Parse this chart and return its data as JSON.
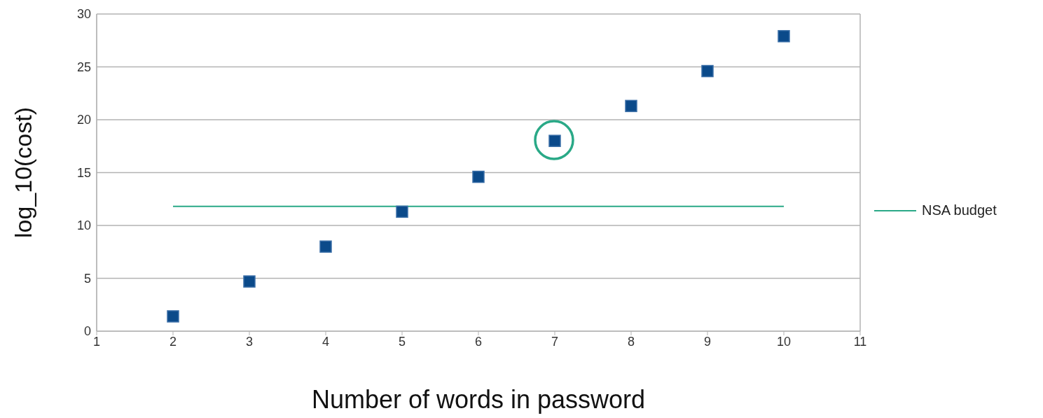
{
  "chart_data": {
    "type": "scatter",
    "xlabel": "Number of words in password",
    "ylabel": "log_10(cost)",
    "x": [
      2,
      3,
      4,
      5,
      6,
      7,
      8,
      9,
      10
    ],
    "series": [
      {
        "color": "#0b4a8a",
        "values": [
          1.4,
          4.7,
          8.0,
          11.3,
          14.6,
          18.0,
          21.3,
          24.6,
          27.9
        ],
        "marker": "square"
      },
      {
        "type": "line",
        "name": "NSA budget",
        "color": "#2aa987",
        "x": [
          2,
          10
        ],
        "values": [
          11.8,
          11.8
        ],
        "marker": "none"
      }
    ],
    "xlim": [
      1,
      11
    ],
    "xticks": [
      1,
      2,
      3,
      4,
      5,
      6,
      7,
      8,
      9,
      10,
      11
    ],
    "ylim": [
      0,
      30
    ],
    "yticks": [
      0,
      5,
      10,
      15,
      20,
      25,
      30
    ],
    "grid": "y",
    "legend": "right"
  }
}
